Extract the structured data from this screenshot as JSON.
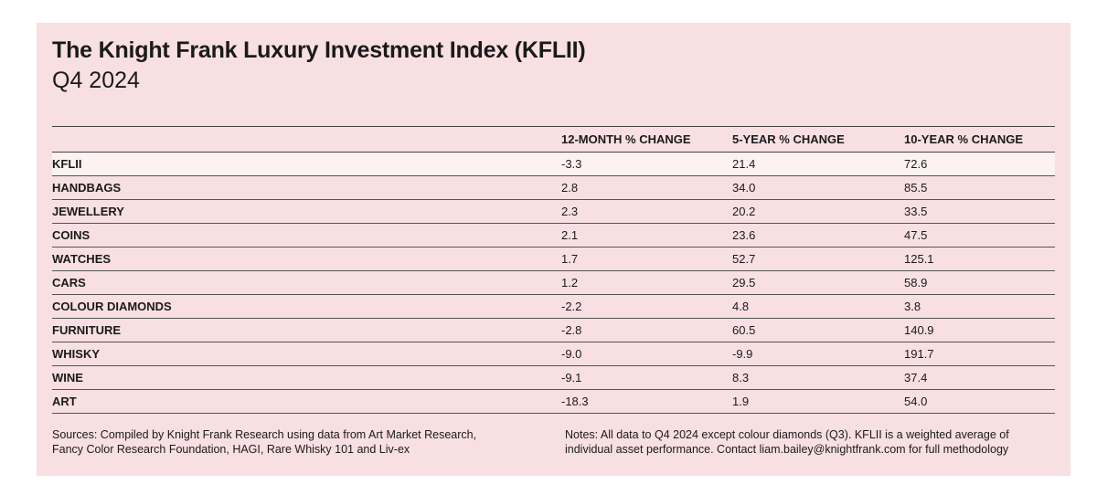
{
  "title": "The Knight Frank Luxury Investment Index (KFLII)",
  "subtitle": "Q4 2024",
  "chart_data": {
    "type": "table",
    "title": "The Knight Frank Luxury Investment Index (KFLII)",
    "subtitle": "Q4 2024",
    "columns": [
      "",
      "12-MONTH % CHANGE",
      "5-YEAR % CHANGE",
      "10-YEAR % CHANGE"
    ],
    "rows": [
      {
        "label": "KFLII",
        "values": [
          "-3.3",
          "21.4",
          "72.6"
        ]
      },
      {
        "label": "HANDBAGS",
        "values": [
          "2.8",
          "34.0",
          "85.5"
        ]
      },
      {
        "label": "JEWELLERY",
        "values": [
          "2.3",
          "20.2",
          "33.5"
        ]
      },
      {
        "label": "COINS",
        "values": [
          "2.1",
          "23.6",
          "47.5"
        ]
      },
      {
        "label": "WATCHES",
        "values": [
          "1.7",
          "52.7",
          "125.1"
        ]
      },
      {
        "label": "CARS",
        "values": [
          "1.2",
          "29.5",
          "58.9"
        ]
      },
      {
        "label": "COLOUR DIAMONDS",
        "values": [
          "-2.2",
          "4.8",
          "3.8"
        ]
      },
      {
        "label": "FURNITURE",
        "values": [
          "-2.8",
          "60.5",
          "140.9"
        ]
      },
      {
        "label": "WHISKY",
        "values": [
          "-9.0",
          "-9.9",
          "191.7"
        ]
      },
      {
        "label": "WINE",
        "values": [
          "-9.1",
          "8.3",
          "37.4"
        ]
      },
      {
        "label": "ART",
        "values": [
          "-18.3",
          "1.9",
          "54.0"
        ]
      }
    ]
  },
  "sources_line1": "Sources: Compiled by Knight Frank Research using data from Art Market Research,",
  "sources_line2": "Fancy Color Research Foundation, HAGI, Rare Whisky 101 and Liv-ex",
  "notes_line1": "Notes: All data to Q4 2024 except colour diamonds (Q3). KFLII is a weighted average of",
  "notes_line2": "individual asset performance. Contact liam.bailey@knightfrank.com for full methodology",
  "colors": {
    "background": "#f8dfe2",
    "highlight_row": "#fdf1f2",
    "text": "#1a1a1a"
  }
}
